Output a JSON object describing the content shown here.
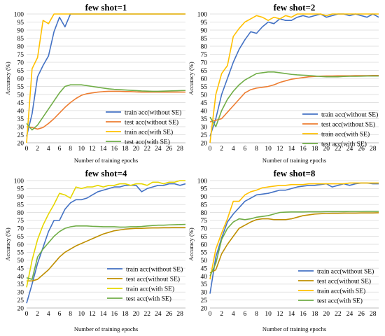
{
  "colors": {
    "train_without_se": "#4472C4",
    "test_without_se_panels_1_2": "#ED7D31",
    "test_without_se_panels_3_4": "#BF8F00",
    "train_with_se": "#FFC000",
    "train_with_se_panel_3": "#E6D600",
    "test_with_se": "#70AD47",
    "grid": "#d9d9d9"
  },
  "chart_data": [
    {
      "type": "line",
      "title": "few shot=1",
      "xlabel": "Number of training epochs",
      "ylabel": "Accuracy (%)",
      "xlim": [
        0,
        29
      ],
      "ylim": [
        20,
        100
      ],
      "xticks": [
        0,
        2,
        4,
        6,
        8,
        10,
        12,
        14,
        16,
        18,
        20,
        22,
        24,
        26,
        28
      ],
      "yticks": [
        20,
        25,
        30,
        35,
        40,
        45,
        50,
        55,
        60,
        65,
        70,
        75,
        80,
        85,
        90,
        95,
        100
      ],
      "grid": "horizontal",
      "legend_position": "bottom-right",
      "x": [
        0,
        1,
        2,
        3,
        4,
        5,
        6,
        7,
        8,
        9,
        10,
        11,
        12,
        13,
        14,
        15,
        16,
        17,
        18,
        19,
        20,
        21,
        22,
        23,
        24,
        25,
        26,
        27,
        28,
        29
      ],
      "series": [
        {
          "name": "train acc(without SE)",
          "color_key": "train_without_se",
          "values": [
            24,
            38,
            61,
            68,
            74,
            89,
            98,
            92,
            100,
            100,
            100,
            100,
            100,
            100,
            100,
            100,
            100,
            100,
            100,
            100,
            100,
            100,
            100,
            100,
            100,
            100,
            100,
            100,
            100,
            100
          ]
        },
        {
          "name": "test acc(without SE)",
          "color_key": "test_without_se_panels_1_2",
          "values": [
            30,
            29.5,
            28.5,
            29.5,
            32,
            35,
            38.5,
            42,
            45,
            47.5,
            49.5,
            50.5,
            51,
            51.5,
            51.8,
            52,
            52,
            52,
            51.8,
            51.8,
            51.6,
            51.5,
            51.5,
            51.5,
            51.5,
            51.5,
            51.5,
            51.5,
            51.5,
            51.5
          ]
        },
        {
          "name": "train acc(with SE)",
          "color_key": "train_with_se",
          "values": [
            20,
            66,
            73,
            96,
            94,
            100,
            100,
            100,
            100,
            100,
            100,
            100,
            100,
            100,
            100,
            100,
            100,
            100,
            100,
            100,
            100,
            100,
            100,
            100,
            100,
            100,
            100,
            100,
            100,
            100
          ]
        },
        {
          "name": "test acc(with SE)",
          "color_key": "test_with_se",
          "values": [
            32,
            28,
            31,
            36,
            41,
            46,
            51,
            55,
            56,
            56,
            56,
            55.5,
            55,
            54.5,
            54,
            53.5,
            53.2,
            53,
            52.8,
            52.6,
            52.4,
            52.2,
            52.1,
            52,
            52,
            52.1,
            52.2,
            52.3,
            52.4,
            52.5
          ]
        }
      ]
    },
    {
      "type": "line",
      "title": "few shot=2",
      "xlabel": "Number of training epochs",
      "ylabel": "Accuracy (%)",
      "xlim": [
        0,
        29
      ],
      "ylim": [
        20,
        100
      ],
      "xticks": [
        0,
        2,
        4,
        6,
        8,
        10,
        12,
        14,
        16,
        18,
        20,
        22,
        24,
        26,
        28
      ],
      "yticks": [
        20,
        25,
        30,
        35,
        40,
        45,
        50,
        55,
        60,
        65,
        70,
        75,
        80,
        85,
        90,
        95,
        100
      ],
      "grid": "horizontal",
      "legend_position": "bottom-right",
      "x": [
        0,
        1,
        2,
        3,
        4,
        5,
        6,
        7,
        8,
        9,
        10,
        11,
        12,
        13,
        14,
        15,
        16,
        17,
        18,
        19,
        20,
        21,
        22,
        23,
        24,
        25,
        26,
        27,
        28,
        29
      ],
      "series": [
        {
          "name": "train acc(without SE)",
          "color_key": "train_without_se",
          "values": [
            24,
            35,
            50,
            60,
            70,
            78,
            84,
            89,
            88,
            92,
            95,
            94,
            97,
            96,
            96,
            98,
            99,
            98,
            99,
            100,
            98,
            99,
            100,
            100,
            99,
            100,
            99,
            98,
            100,
            98
          ]
        },
        {
          "name": "test acc(without SE)",
          "color_key": "test_without_se_panels_1_2",
          "values": [
            33,
            34,
            35,
            39,
            43,
            47,
            51,
            53,
            54,
            54.5,
            55,
            56,
            57.5,
            58.5,
            59.5,
            60,
            60.5,
            61,
            61.2,
            61.4,
            61.5,
            61.5,
            61.6,
            61.6,
            61.6,
            61.7,
            61.7,
            61.7,
            61.8,
            61.8
          ]
        },
        {
          "name": "train acc(with SE)",
          "color_key": "train_with_se",
          "values": [
            20,
            50,
            63,
            68,
            86,
            91,
            95,
            97,
            99,
            98,
            96,
            98,
            97,
            99,
            98,
            100,
            100,
            100,
            100,
            100,
            99,
            100,
            100,
            100,
            100,
            100,
            100,
            100,
            100,
            100
          ]
        },
        {
          "name": "test acc(with SE)",
          "color_key": "test_with_se",
          "values": [
            36,
            30,
            40,
            47,
            52,
            56,
            59,
            61,
            63,
            63.5,
            64,
            64,
            63.5,
            63,
            62.5,
            62.2,
            62,
            61.8,
            61.5,
            61.2,
            61,
            61,
            61,
            61.2,
            61.3,
            61.3,
            61.4,
            61.5,
            61.5,
            61.5
          ]
        }
      ]
    },
    {
      "type": "line",
      "title": "few shot=4",
      "xlabel": "Number of training epochs",
      "ylabel": "Accuracy (%)",
      "xlim": [
        0,
        29
      ],
      "ylim": [
        20,
        100
      ],
      "xticks": [
        0,
        2,
        4,
        6,
        8,
        10,
        12,
        14,
        16,
        18,
        20,
        22,
        24,
        26,
        28
      ],
      "yticks": [
        20,
        25,
        30,
        35,
        40,
        45,
        50,
        55,
        60,
        65,
        70,
        75,
        80,
        85,
        90,
        95,
        100
      ],
      "grid": "horizontal",
      "legend_position": "bottom-right",
      "x": [
        0,
        1,
        2,
        3,
        4,
        5,
        6,
        7,
        8,
        9,
        10,
        11,
        12,
        13,
        14,
        15,
        16,
        17,
        18,
        19,
        20,
        21,
        22,
        23,
        24,
        25,
        26,
        27,
        28,
        29
      ],
      "series": [
        {
          "name": "train acc(without SE)",
          "color_key": "train_without_se",
          "values": [
            23,
            35,
            48,
            58,
            68,
            75,
            75,
            82,
            86,
            88,
            88,
            89,
            91,
            93,
            94,
            95,
            96,
            96,
            97,
            97,
            97,
            93,
            95,
            96,
            97,
            97,
            98,
            98,
            97,
            98
          ]
        },
        {
          "name": "test acc(without SE)",
          "color_key": "test_without_se_panels_3_4",
          "values": [
            37,
            37,
            38,
            41,
            44,
            48,
            52,
            55,
            57,
            59,
            60.5,
            62,
            63.5,
            65,
            66.5,
            67.5,
            68.5,
            69,
            69.5,
            69.8,
            70,
            70,
            70.2,
            70.3,
            70.3,
            70.4,
            70.4,
            70.5,
            70.5,
            70.5
          ]
        },
        {
          "name": "train acc(with SE)",
          "color_key": "train_with_se_panel_3",
          "values": [
            33,
            50,
            63,
            72,
            79,
            85,
            92,
            91,
            89,
            96,
            95,
            96,
            96,
            97,
            96,
            97,
            97,
            98,
            98,
            97,
            98,
            98,
            97,
            99,
            99,
            98,
            99,
            99,
            100,
            100
          ]
        },
        {
          "name": "test acc(with SE)",
          "color_key": "test_with_se",
          "values": [
            39,
            38,
            52,
            57,
            61,
            65,
            68,
            70,
            71,
            71.5,
            71.5,
            71.5,
            71.3,
            71.2,
            71,
            71,
            71,
            70.8,
            70.8,
            71,
            71,
            71.2,
            71.5,
            71.8,
            72,
            72,
            72.2,
            72.3,
            72.4,
            72.5
          ]
        }
      ]
    },
    {
      "type": "line",
      "title": "few shot=8",
      "xlabel": "Number of training epochs",
      "ylabel": "Accuracy (%)",
      "xlim": [
        0,
        29
      ],
      "ylim": [
        20,
        100
      ],
      "xticks": [
        0,
        2,
        4,
        6,
        8,
        10,
        12,
        14,
        16,
        18,
        20,
        22,
        24,
        26,
        28
      ],
      "yticks": [
        20,
        25,
        30,
        35,
        40,
        45,
        50,
        55,
        60,
        65,
        70,
        75,
        80,
        85,
        90,
        95,
        100
      ],
      "grid": "horizontal",
      "legend_position": "bottom-right",
      "x": [
        0,
        1,
        2,
        3,
        4,
        5,
        6,
        7,
        8,
        9,
        10,
        11,
        12,
        13,
        14,
        15,
        16,
        17,
        18,
        19,
        20,
        21,
        22,
        23,
        24,
        25,
        26,
        27,
        28,
        29
      ],
      "series": [
        {
          "name": "train acc(without SE)",
          "color_key": "train_without_se",
          "values": [
            29,
            52,
            64,
            74,
            79,
            83,
            87,
            89,
            91,
            91.5,
            92,
            93,
            94,
            94,
            95,
            96,
            96.5,
            97,
            97,
            97.5,
            98,
            96,
            97,
            98,
            97,
            98,
            98.5,
            98.5,
            98,
            98
          ]
        },
        {
          "name": "test acc(without SE)",
          "color_key": "test_without_se_panels_3_4",
          "values": [
            42,
            44,
            54,
            60,
            65,
            70,
            72,
            74,
            75.5,
            76,
            76,
            75.5,
            75.5,
            75.5,
            76,
            77,
            78,
            78.5,
            79,
            79.2,
            79.4,
            79.5,
            79.5,
            79.6,
            79.6,
            79.6,
            79.7,
            79.7,
            79.7,
            79.8
          ]
        },
        {
          "name": "train acc(with SE)",
          "color_key": "train_with_se",
          "values": [
            38,
            57,
            67,
            76,
            87,
            87,
            91,
            93,
            94,
            95.5,
            96,
            96.5,
            97,
            97,
            97.5,
            97.5,
            97.5,
            98,
            98,
            98,
            98,
            98,
            98,
            98,
            98.5,
            98.5,
            98.5,
            98.5,
            98.5,
            98.5
          ]
        },
        {
          "name": "test acc(with SE)",
          "color_key": "test_with_se",
          "values": [
            40,
            48,
            63,
            70,
            74,
            76,
            75.5,
            76,
            77,
            77.5,
            78,
            79,
            80,
            80.2,
            80.3,
            80.3,
            80.3,
            80.4,
            80.4,
            80.4,
            80.5,
            80.5,
            80.5,
            80.5,
            80.6,
            80.6,
            80.6,
            80.7,
            80.7,
            80.7
          ]
        }
      ]
    }
  ]
}
